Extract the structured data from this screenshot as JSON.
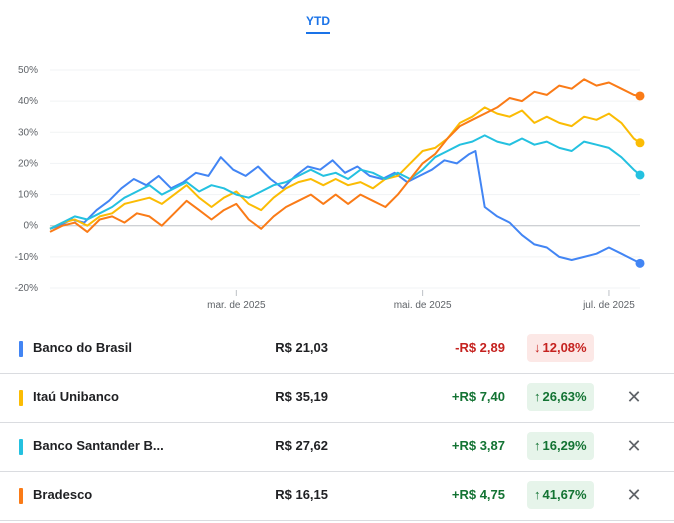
{
  "tabs": [
    {
      "label": "YTD",
      "active": true
    }
  ],
  "chart_data": {
    "type": "line",
    "yticks": [
      "50%",
      "40%",
      "30%",
      "20%",
      "10%",
      "0%",
      "-10%",
      "-20%"
    ],
    "ytick_values": [
      50,
      40,
      30,
      20,
      10,
      0,
      -10,
      -20
    ],
    "ylim": [
      -20,
      50
    ],
    "xlim": [
      "2025-01-02",
      "2025-07-11"
    ],
    "xticks": [
      {
        "label": "mar. de 2025",
        "date": "2025-03-03"
      },
      {
        "label": "mai. de 2025",
        "date": "2025-05-02"
      },
      {
        "label": "jul. de 2025",
        "date": "2025-07-01"
      }
    ],
    "grid": "horizontal",
    "series": [
      {
        "name": "Banco do Brasil",
        "color": "#4285f4",
        "final": -12.08,
        "points": [
          [
            "2025-01-02",
            -1
          ],
          [
            "2025-01-05",
            0
          ],
          [
            "2025-01-09",
            2
          ],
          [
            "2025-01-13",
            1
          ],
          [
            "2025-01-17",
            5
          ],
          [
            "2025-01-21",
            8
          ],
          [
            "2025-01-25",
            12
          ],
          [
            "2025-01-29",
            15
          ],
          [
            "2025-02-02",
            13
          ],
          [
            "2025-02-06",
            16
          ],
          [
            "2025-02-10",
            12
          ],
          [
            "2025-02-14",
            14
          ],
          [
            "2025-02-18",
            17
          ],
          [
            "2025-02-22",
            16
          ],
          [
            "2025-02-26",
            22
          ],
          [
            "2025-03-02",
            18
          ],
          [
            "2025-03-06",
            16
          ],
          [
            "2025-03-10",
            19
          ],
          [
            "2025-03-14",
            15
          ],
          [
            "2025-03-18",
            12
          ],
          [
            "2025-03-22",
            16
          ],
          [
            "2025-03-26",
            19
          ],
          [
            "2025-03-30",
            18
          ],
          [
            "2025-04-03",
            21
          ],
          [
            "2025-04-07",
            17
          ],
          [
            "2025-04-11",
            19
          ],
          [
            "2025-04-15",
            16
          ],
          [
            "2025-04-19",
            15
          ],
          [
            "2025-04-23",
            17
          ],
          [
            "2025-04-27",
            14
          ],
          [
            "2025-05-01",
            16
          ],
          [
            "2025-05-05",
            18
          ],
          [
            "2025-05-09",
            21
          ],
          [
            "2025-05-13",
            20
          ],
          [
            "2025-05-17",
            23
          ],
          [
            "2025-05-19",
            24
          ],
          [
            "2025-05-22",
            6
          ],
          [
            "2025-05-26",
            3
          ],
          [
            "2025-05-30",
            1
          ],
          [
            "2025-06-03",
            -3
          ],
          [
            "2025-06-07",
            -6
          ],
          [
            "2025-06-11",
            -7
          ],
          [
            "2025-06-15",
            -10
          ],
          [
            "2025-06-19",
            -11
          ],
          [
            "2025-06-23",
            -10
          ],
          [
            "2025-06-27",
            -9
          ],
          [
            "2025-07-01",
            -7
          ],
          [
            "2025-07-05",
            -9
          ],
          [
            "2025-07-09",
            -11
          ],
          [
            "2025-07-11",
            -12.08
          ]
        ]
      },
      {
        "name": "Itaú Unibanco",
        "color": "#fbbc04",
        "final": 26.63,
        "points": [
          [
            "2025-01-02",
            -1
          ],
          [
            "2025-01-06",
            1
          ],
          [
            "2025-01-10",
            2
          ],
          [
            "2025-01-14",
            0
          ],
          [
            "2025-01-18",
            3
          ],
          [
            "2025-01-22",
            4
          ],
          [
            "2025-01-26",
            7
          ],
          [
            "2025-01-30",
            8
          ],
          [
            "2025-02-03",
            9
          ],
          [
            "2025-02-07",
            7
          ],
          [
            "2025-02-11",
            10
          ],
          [
            "2025-02-15",
            13
          ],
          [
            "2025-02-19",
            9
          ],
          [
            "2025-02-23",
            6
          ],
          [
            "2025-02-27",
            9
          ],
          [
            "2025-03-03",
            11
          ],
          [
            "2025-03-07",
            7
          ],
          [
            "2025-03-11",
            5
          ],
          [
            "2025-03-15",
            9
          ],
          [
            "2025-03-19",
            12
          ],
          [
            "2025-03-23",
            14
          ],
          [
            "2025-03-27",
            15
          ],
          [
            "2025-03-31",
            13
          ],
          [
            "2025-04-04",
            15
          ],
          [
            "2025-04-08",
            13
          ],
          [
            "2025-04-12",
            14
          ],
          [
            "2025-04-16",
            12
          ],
          [
            "2025-04-20",
            15
          ],
          [
            "2025-04-24",
            16
          ],
          [
            "2025-04-28",
            20
          ],
          [
            "2025-05-02",
            24
          ],
          [
            "2025-05-06",
            25
          ],
          [
            "2025-05-10",
            28
          ],
          [
            "2025-05-14",
            33
          ],
          [
            "2025-05-18",
            35
          ],
          [
            "2025-05-22",
            38
          ],
          [
            "2025-05-26",
            36
          ],
          [
            "2025-05-30",
            35
          ],
          [
            "2025-06-03",
            37
          ],
          [
            "2025-06-07",
            33
          ],
          [
            "2025-06-11",
            35
          ],
          [
            "2025-06-15",
            33
          ],
          [
            "2025-06-19",
            32
          ],
          [
            "2025-06-23",
            35
          ],
          [
            "2025-06-27",
            34
          ],
          [
            "2025-07-01",
            36
          ],
          [
            "2025-07-05",
            33
          ],
          [
            "2025-07-09",
            28
          ],
          [
            "2025-07-11",
            26.63
          ]
        ]
      },
      {
        "name": "Banco Santander B...",
        "color": "#24c1e0",
        "final": 16.29,
        "points": [
          [
            "2025-01-02",
            -1
          ],
          [
            "2025-01-06",
            1
          ],
          [
            "2025-01-10",
            3
          ],
          [
            "2025-01-14",
            2
          ],
          [
            "2025-01-18",
            4
          ],
          [
            "2025-01-22",
            6
          ],
          [
            "2025-01-26",
            9
          ],
          [
            "2025-01-30",
            11
          ],
          [
            "2025-02-03",
            13
          ],
          [
            "2025-02-07",
            10
          ],
          [
            "2025-02-11",
            12
          ],
          [
            "2025-02-15",
            14
          ],
          [
            "2025-02-19",
            11
          ],
          [
            "2025-02-23",
            13
          ],
          [
            "2025-02-27",
            12
          ],
          [
            "2025-03-03",
            10
          ],
          [
            "2025-03-07",
            9
          ],
          [
            "2025-03-11",
            11
          ],
          [
            "2025-03-15",
            13
          ],
          [
            "2025-03-19",
            14
          ],
          [
            "2025-03-23",
            16
          ],
          [
            "2025-03-27",
            18
          ],
          [
            "2025-03-31",
            16
          ],
          [
            "2025-04-04",
            17
          ],
          [
            "2025-04-08",
            15
          ],
          [
            "2025-04-12",
            18
          ],
          [
            "2025-04-16",
            17
          ],
          [
            "2025-04-20",
            15
          ],
          [
            "2025-04-24",
            17
          ],
          [
            "2025-04-28",
            15
          ],
          [
            "2025-05-02",
            18
          ],
          [
            "2025-05-06",
            22
          ],
          [
            "2025-05-10",
            24
          ],
          [
            "2025-05-14",
            26
          ],
          [
            "2025-05-18",
            27
          ],
          [
            "2025-05-22",
            29
          ],
          [
            "2025-05-26",
            27
          ],
          [
            "2025-05-30",
            26
          ],
          [
            "2025-06-03",
            28
          ],
          [
            "2025-06-07",
            26
          ],
          [
            "2025-06-11",
            27
          ],
          [
            "2025-06-15",
            25
          ],
          [
            "2025-06-19",
            24
          ],
          [
            "2025-06-23",
            27
          ],
          [
            "2025-06-27",
            26
          ],
          [
            "2025-07-01",
            25
          ],
          [
            "2025-07-05",
            22
          ],
          [
            "2025-07-09",
            18
          ],
          [
            "2025-07-11",
            16.29
          ]
        ]
      },
      {
        "name": "Bradesco",
        "color": "#fa7b17",
        "final": 41.67,
        "points": [
          [
            "2025-01-02",
            -2
          ],
          [
            "2025-01-06",
            0
          ],
          [
            "2025-01-10",
            1
          ],
          [
            "2025-01-14",
            -2
          ],
          [
            "2025-01-18",
            2
          ],
          [
            "2025-01-22",
            3
          ],
          [
            "2025-01-26",
            1
          ],
          [
            "2025-01-30",
            4
          ],
          [
            "2025-02-03",
            3
          ],
          [
            "2025-02-07",
            0
          ],
          [
            "2025-02-11",
            4
          ],
          [
            "2025-02-15",
            8
          ],
          [
            "2025-02-19",
            5
          ],
          [
            "2025-02-23",
            2
          ],
          [
            "2025-02-27",
            5
          ],
          [
            "2025-03-03",
            7
          ],
          [
            "2025-03-07",
            2
          ],
          [
            "2025-03-11",
            -1
          ],
          [
            "2025-03-15",
            3
          ],
          [
            "2025-03-19",
            6
          ],
          [
            "2025-03-23",
            8
          ],
          [
            "2025-03-27",
            10
          ],
          [
            "2025-03-31",
            7
          ],
          [
            "2025-04-04",
            10
          ],
          [
            "2025-04-08",
            7
          ],
          [
            "2025-04-12",
            10
          ],
          [
            "2025-04-16",
            8
          ],
          [
            "2025-04-20",
            6
          ],
          [
            "2025-04-24",
            10
          ],
          [
            "2025-04-28",
            15
          ],
          [
            "2025-05-02",
            20
          ],
          [
            "2025-05-06",
            23
          ],
          [
            "2025-05-10",
            28
          ],
          [
            "2025-05-14",
            32
          ],
          [
            "2025-05-18",
            34
          ],
          [
            "2025-05-22",
            36
          ],
          [
            "2025-05-26",
            38
          ],
          [
            "2025-05-30",
            41
          ],
          [
            "2025-06-03",
            40
          ],
          [
            "2025-06-07",
            43
          ],
          [
            "2025-06-11",
            42
          ],
          [
            "2025-06-15",
            45
          ],
          [
            "2025-06-19",
            44
          ],
          [
            "2025-06-23",
            47
          ],
          [
            "2025-06-27",
            45
          ],
          [
            "2025-07-01",
            46
          ],
          [
            "2025-07-05",
            44
          ],
          [
            "2025-07-09",
            42
          ],
          [
            "2025-07-11",
            41.67
          ]
        ]
      }
    ]
  },
  "rows": [
    {
      "name": "Banco do Brasil",
      "price": "R$ 21,03",
      "change": "-R$ 2,89",
      "pct": "12,08%",
      "direction": "down",
      "arrow": "↓",
      "color": "#4285f4",
      "removable": false
    },
    {
      "name": "Itaú Unibanco",
      "price": "R$ 35,19",
      "change": "+R$ 7,40",
      "pct": "26,63%",
      "direction": "up",
      "arrow": "↑",
      "color": "#fbbc04",
      "removable": true
    },
    {
      "name": "Banco Santander B...",
      "price": "R$ 27,62",
      "change": "+R$ 3,87",
      "pct": "16,29%",
      "direction": "up",
      "arrow": "↑",
      "color": "#24c1e0",
      "removable": true
    },
    {
      "name": "Bradesco",
      "price": "R$ 16,15",
      "change": "+R$ 4,75",
      "pct": "41,67%",
      "direction": "up",
      "arrow": "↑",
      "color": "#fa7b17",
      "removable": true
    }
  ],
  "remove_icon": "close-icon",
  "remove_glyph": "✕"
}
